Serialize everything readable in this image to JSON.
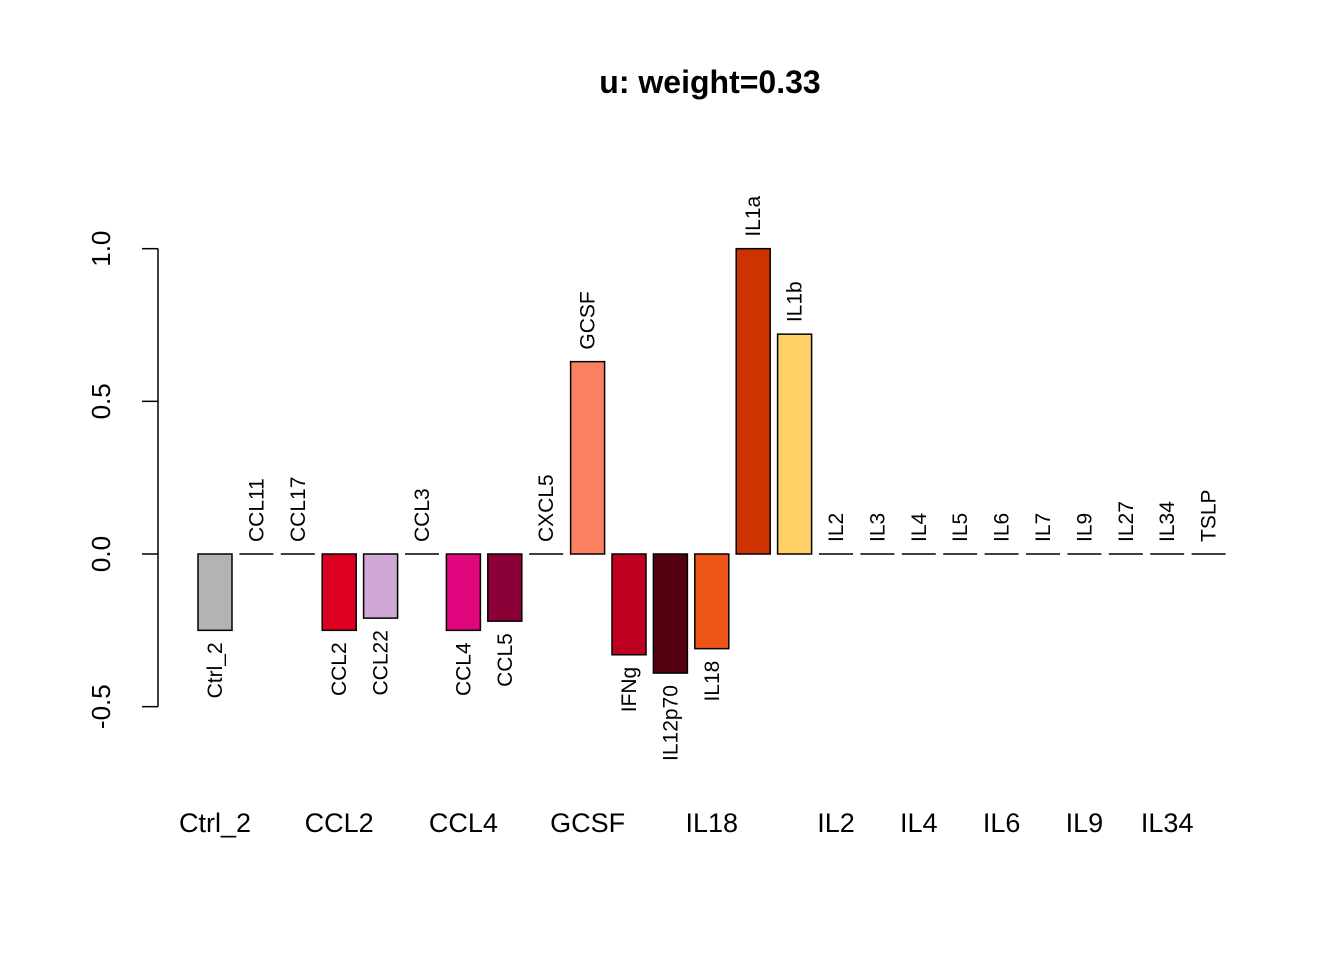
{
  "chart_data": {
    "type": "bar",
    "title": "u: weight=0.33",
    "xlabel": "",
    "ylabel": "",
    "ylim": [
      -0.5,
      1.0
    ],
    "yticks": [
      -0.5,
      0.0,
      0.5,
      1.0
    ],
    "ytick_labels": [
      "-0.5",
      "0.0",
      "0.5",
      "1.0"
    ],
    "grid": false,
    "legend": "none",
    "categories": [
      "Ctrl_2",
      "CCL11",
      "CCL17",
      "CCL2",
      "CCL22",
      "CCL3",
      "CCL4",
      "CCL5",
      "CXCL5",
      "GCSF",
      "IFNg",
      "IL12p70",
      "IL18",
      "IL1a",
      "IL1b",
      "IL2",
      "IL3",
      "IL4",
      "IL5",
      "IL6",
      "IL7",
      "IL9",
      "IL27",
      "IL34",
      "TSLP"
    ],
    "values": [
      -0.25,
      0.0,
      0.0,
      -0.25,
      -0.21,
      0.0,
      -0.25,
      -0.22,
      0.0,
      0.63,
      -0.33,
      -0.39,
      -0.31,
      1.0,
      0.72,
      0.0,
      0.0,
      0.0,
      0.0,
      0.0,
      0.0,
      0.0,
      0.0,
      0.0,
      0.0
    ],
    "colors": [
      "#b3b3b3",
      "#ffffff",
      "#ffffff",
      "#de0020",
      "#cfa8d6",
      "#ffffff",
      "#e0067e",
      "#8c0038",
      "#ffffff",
      "#fa8061",
      "#bf0020",
      "#540010",
      "#ed5515",
      "#cc3300",
      "#ffd166",
      "#ffffff",
      "#ffffff",
      "#ffffff",
      "#ffffff",
      "#ffffff",
      "#ffffff",
      "#ffffff",
      "#ffffff",
      "#ffffff",
      "#ffffff"
    ],
    "x_axis_labels": [
      {
        "index": 0,
        "label": "Ctrl_2"
      },
      {
        "index": 3,
        "label": "CCL2"
      },
      {
        "index": 6,
        "label": "CCL4"
      },
      {
        "index": 9,
        "label": "GCSF"
      },
      {
        "index": 12,
        "label": "IL18"
      },
      {
        "index": 15,
        "label": "IL2"
      },
      {
        "index": 17,
        "label": "IL4"
      },
      {
        "index": 19,
        "label": "IL6"
      },
      {
        "index": 21,
        "label": "IL9"
      },
      {
        "index": 23,
        "label": "IL34"
      }
    ]
  }
}
